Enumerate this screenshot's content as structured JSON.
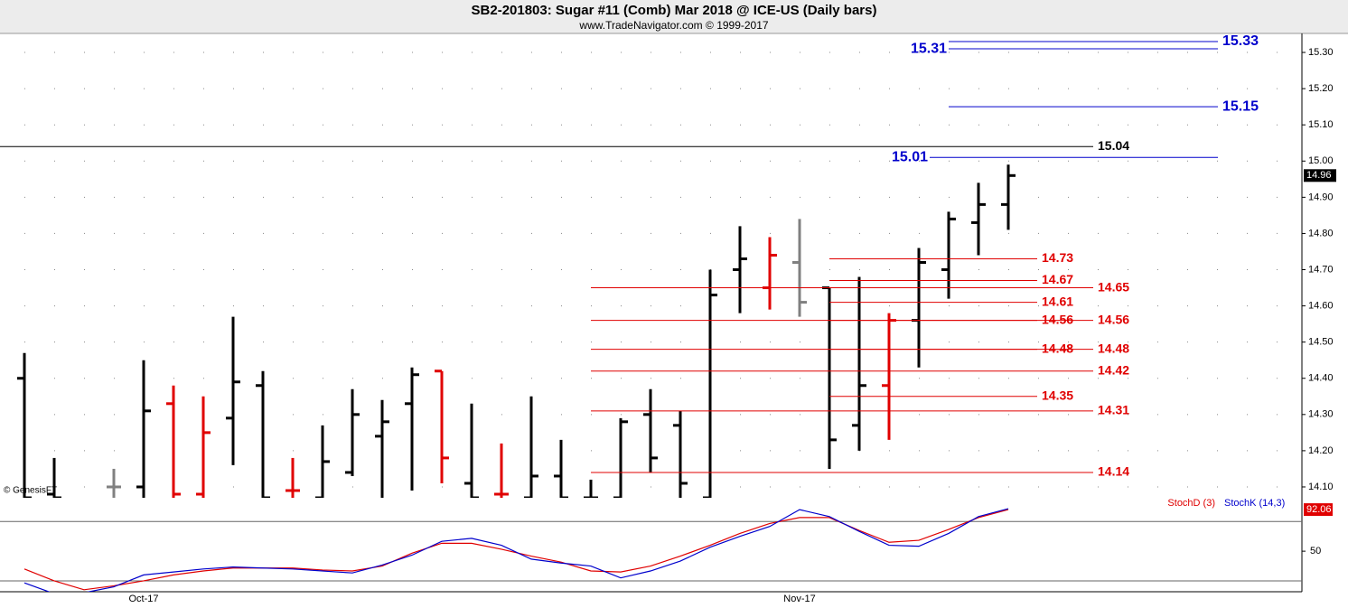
{
  "chart_data": {
    "type": "ohlc",
    "title": "SB2-201803:  Sugar #11 (Comb) Mar 2018 @ ICE-US  (Daily bars)",
    "subtitle": "www.TradeNavigator.com © 1999-2017",
    "copyright": "© GenesisFT",
    "categories": [
      null,
      null,
      null,
      null,
      "Oct-17",
      null,
      null,
      null,
      null,
      null,
      null,
      null,
      null,
      null,
      null,
      null,
      null,
      null,
      null,
      null,
      null,
      null,
      null,
      null,
      null,
      null,
      "Nov-17",
      null,
      null,
      null,
      null,
      null,
      null,
      null
    ],
    "open": [
      14.4,
      14.08,
      null,
      14.1,
      14.1,
      14.33,
      14.08,
      14.29,
      14.38,
      14.09,
      14.07,
      14.14,
      14.24,
      14.33,
      14.42,
      14.11,
      14.08,
      14.07,
      14.13,
      14.07,
      14.07,
      14.3,
      14.27,
      14.07,
      14.7,
      14.65,
      14.72,
      14.65,
      14.27,
      14.38,
      14.56,
      14.7,
      14.83,
      14.88
    ],
    "high": [
      14.47,
      14.18,
      null,
      14.15,
      14.45,
      14.38,
      14.35,
      14.57,
      14.42,
      14.18,
      14.27,
      14.37,
      14.34,
      14.43,
      14.42,
      14.33,
      14.22,
      14.35,
      14.23,
      14.12,
      14.29,
      14.37,
      14.31,
      14.7,
      14.82,
      14.79,
      14.84,
      14.65,
      14.68,
      14.58,
      14.76,
      14.86,
      14.94,
      14.99
    ],
    "low": [
      14.05,
      14.05,
      null,
      14.05,
      14.05,
      14.05,
      14.05,
      14.16,
      14.05,
      14.05,
      14.05,
      14.13,
      14.05,
      14.09,
      14.11,
      14.05,
      14.07,
      14.05,
      14.05,
      14.05,
      14.05,
      14.14,
      14.05,
      14.05,
      14.58,
      14.59,
      14.57,
      14.15,
      14.2,
      14.23,
      14.43,
      14.62,
      14.74,
      14.81
    ],
    "close": [
      14.07,
      14.07,
      null,
      14.1,
      14.31,
      14.08,
      14.25,
      14.39,
      14.07,
      14.09,
      14.17,
      14.3,
      14.28,
      14.41,
      14.18,
      14.07,
      14.08,
      14.13,
      14.07,
      14.07,
      14.28,
      14.18,
      14.11,
      14.63,
      14.73,
      14.74,
      14.61,
      14.23,
      14.38,
      14.56,
      14.72,
      14.84,
      14.88,
      14.96
    ],
    "colors": [
      "#000000",
      "#000000",
      null,
      "#808080",
      "#000000",
      "#e00000",
      "#e00000",
      "#000000",
      "#000000",
      "#e00000",
      "#000000",
      "#000000",
      "#000000",
      "#000000",
      "#e00000",
      "#000000",
      "#e00000",
      "#000000",
      "#000000",
      "#000000",
      "#000000",
      "#000000",
      "#000000",
      "#000000",
      "#000000",
      "#e00000",
      "#808080",
      "#000000",
      "#000000",
      "#e00000",
      "#000000",
      "#000000",
      "#000000",
      "#000000"
    ],
    "ylim": [
      14.07,
      15.35
    ],
    "yticks": [
      {
        "value": 14.1,
        "label": "14.10"
      },
      {
        "value": 14.2,
        "label": "14.20"
      },
      {
        "value": 14.3,
        "label": "14.30"
      },
      {
        "value": 14.4,
        "label": "14.40"
      },
      {
        "value": 14.5,
        "label": "14.50"
      },
      {
        "value": 14.6,
        "label": "14.60"
      },
      {
        "value": 14.7,
        "label": "14.70"
      },
      {
        "value": 14.8,
        "label": "14.80"
      },
      {
        "value": 14.9,
        "label": "14.90"
      },
      {
        "value": 15.0,
        "label": "15.00"
      },
      {
        "value": 15.1,
        "label": "15.10"
      },
      {
        "value": 15.2,
        "label": "15.20"
      },
      {
        "value": 15.3,
        "label": "15.30"
      }
    ],
    "grid": true,
    "levels": [
      {
        "value": 15.33,
        "color": "#0000cc",
        "start": 31,
        "label_side": "right"
      },
      {
        "value": 15.31,
        "color": "#0000cc",
        "start": 31,
        "label_side": "left"
      },
      {
        "value": 15.15,
        "color": "#0000cc",
        "start": 31,
        "label_side": "right"
      },
      {
        "value": 15.04,
        "color": "#000000",
        "start": 0,
        "label_side": "right"
      },
      {
        "value": 15.01,
        "color": "#0000cc",
        "start": 31,
        "label_side": "left"
      },
      {
        "value": 14.73,
        "color": "#e00000",
        "start": 27,
        "label_side": "right"
      },
      {
        "value": 14.67,
        "color": "#e00000",
        "start": 27,
        "label_side": "right"
      },
      {
        "value": 14.65,
        "color": "#e00000",
        "start": 19,
        "label_side": "right"
      },
      {
        "value": 14.61,
        "color": "#e00000",
        "start": 27,
        "label_side": "right"
      },
      {
        "value": 14.56,
        "color": "#e00000",
        "start": 27,
        "label_side": "right"
      },
      {
        "value": 14.56,
        "color": "#e00000",
        "start": 19,
        "label_side": "right"
      },
      {
        "value": 14.48,
        "color": "#e00000",
        "start": 27,
        "label_side": "right"
      },
      {
        "value": 14.48,
        "color": "#e00000",
        "start": 19,
        "label_side": "right"
      },
      {
        "value": 14.42,
        "color": "#e00000",
        "start": 19,
        "label_side": "right"
      },
      {
        "value": 14.35,
        "color": "#e00000",
        "start": 27,
        "label_side": "right"
      },
      {
        "value": 14.31,
        "color": "#e00000",
        "start": 19,
        "label_side": "right"
      },
      {
        "value": 14.14,
        "color": "#e00000",
        "start": 19,
        "label_side": "right"
      }
    ],
    "indicator": {
      "type": "line",
      "ylim": [
        9,
        104
      ],
      "yticks": [
        50
      ],
      "reference_lines": [
        20,
        80
      ],
      "series": [
        {
          "name": "StochD (3)",
          "color": "#e00000",
          "values": [
            32,
            20,
            11,
            15,
            20,
            26,
            30,
            33,
            33,
            33,
            31,
            30,
            35,
            48,
            58,
            58,
            52,
            45,
            39,
            30,
            29,
            35,
            45,
            56,
            68,
            78,
            84,
            84,
            71,
            59,
            61,
            72,
            84,
            92.06
          ]
        },
        {
          "name": "StochK (14,3)",
          "color": "#0000cc",
          "values": [
            18,
            7,
            8,
            14,
            26,
            29,
            32,
            34,
            33,
            32,
            30,
            28,
            36,
            46,
            60,
            63,
            56,
            42,
            38,
            35,
            23,
            30,
            40,
            54,
            65,
            75,
            92,
            85,
            70,
            56,
            55,
            68,
            85,
            93
          ]
        }
      ]
    }
  }
}
